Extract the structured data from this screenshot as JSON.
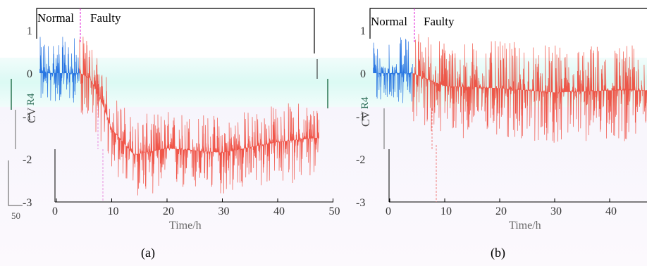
{
  "figure": {
    "panels": [
      {
        "caption": "(a)",
        "xlabel": "Time/h",
        "ylabel": "CV",
        "ylabel_extra": "R4",
        "annotation_bottom_left": "50"
      },
      {
        "caption": "(b)",
        "xlabel": "Time/h",
        "ylabel": "CV",
        "ylabel_extra": "R4",
        "annotation_bottom_left": ""
      }
    ]
  },
  "chart_data": [
    {
      "type": "line",
      "title": "",
      "xlabel": "Time/h",
      "ylabel": "CV",
      "xlim": [
        0,
        50
      ],
      "ylim": [
        -3,
        1.2
      ],
      "xticks": [
        0,
        10,
        20,
        30,
        40,
        50
      ],
      "yticks": [
        -3,
        -2,
        -1,
        0,
        1
      ],
      "grid": false,
      "regions": [
        {
          "label": "Normal",
          "x_start": -3,
          "x_end": 4.2
        },
        {
          "label": "Faulty",
          "x_start": 4.2,
          "x_end": 47.5
        }
      ],
      "fault_onset_x": 4.2,
      "series": [
        {
          "name": "Normal",
          "color": "#1f6fe0",
          "x_start": -3,
          "x_end": 4.2,
          "level": 0.0,
          "spread": [
            -0.7,
            0.85
          ]
        },
        {
          "name": "Faulty",
          "color": "#ef3a2a",
          "x_start": 4.2,
          "x_end": 47.5,
          "trend": [
            [
              4.2,
              0.0
            ],
            [
              6,
              -0.1
            ],
            [
              8,
              -0.6
            ],
            [
              10,
              -1.3
            ],
            [
              14,
              -1.9
            ],
            [
              20,
              -1.75
            ],
            [
              30,
              -1.85
            ],
            [
              40,
              -1.6
            ],
            [
              47.5,
              -1.5
            ]
          ],
          "spread": [
            -1.0,
            0.9
          ]
        }
      ]
    },
    {
      "type": "line",
      "title": "",
      "xlabel": "Time/h",
      "ylabel": "CV",
      "xlim": [
        0,
        50
      ],
      "ylim": [
        -3,
        1.2
      ],
      "xticks": [
        0,
        10,
        20,
        30,
        40
      ],
      "yticks": [
        -3,
        -2,
        -1,
        0,
        1
      ],
      "grid": false,
      "regions": [
        {
          "label": "Normal",
          "x_start": -3,
          "x_end": 4.2
        },
        {
          "label": "Faulty",
          "x_start": 4.2,
          "x_end": 50
        }
      ],
      "fault_onset_x": 4.2,
      "series": [
        {
          "name": "Normal",
          "color": "#1f6fe0",
          "x_start": -3,
          "x_end": 4.2,
          "level": 0.0,
          "spread": [
            -0.7,
            0.85
          ]
        },
        {
          "name": "Faulty",
          "color": "#ef3a2a",
          "x_start": 4.2,
          "x_end": 50,
          "trend": [
            [
              4.2,
              0.0
            ],
            [
              10,
              -0.3
            ],
            [
              20,
              -0.35
            ],
            [
              30,
              -0.45
            ],
            [
              40,
              -0.4
            ],
            [
              50,
              -0.4
            ]
          ],
          "spread": [
            -1.2,
            1.1
          ]
        }
      ]
    }
  ]
}
